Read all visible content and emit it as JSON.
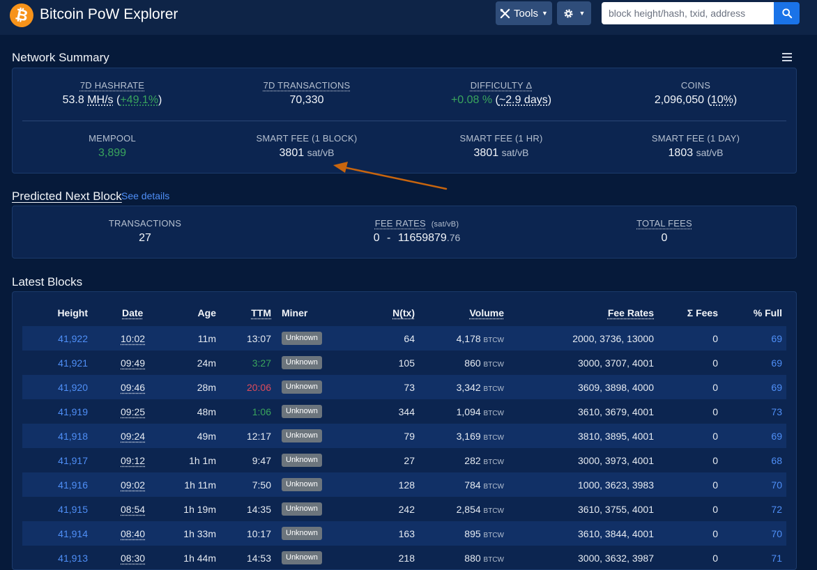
{
  "nav": {
    "brand": "Bitcoin PoW Explorer",
    "logo_symbol": "₿",
    "tools_label": "Tools",
    "search_placeholder": "block height/hash, txid, address"
  },
  "summary": {
    "title": "Network Summary",
    "hashrate_label": "7D HASHRATE",
    "hashrate_value": "53.8",
    "hashrate_unit": "MH/s",
    "hashrate_change": "+49.1%",
    "tx_label": "7D TRANSACTIONS",
    "tx_value": "70,330",
    "difficulty_label": "DIFFICULTY Δ",
    "difficulty_change": "+0.08 %",
    "difficulty_time": "~2.9 days",
    "coins_label": "COINS",
    "coins_value": "2,096,050",
    "coins_pct": "10%",
    "mempool_label": "MEMPOOL",
    "mempool_value": "3,899",
    "fee1_label": "SMART FEE (1 BLOCK)",
    "fee1_value": "3801",
    "fee2_label": "SMART FEE (1 HR)",
    "fee2_value": "3801",
    "fee3_label": "SMART FEE (1 DAY)",
    "fee3_value": "1803",
    "fee_unit": "sat/vB"
  },
  "predicted": {
    "title": "Predicted Next Block",
    "see_details": "See details",
    "tx_label": "TRANSACTIONS",
    "tx_value": "27",
    "feerates_label": "FEE RATES",
    "feerates_unit": "(sat/vB)",
    "feerates_min": "0",
    "feerates_sep": "-",
    "feerates_max_int": "11659879",
    "feerates_max_dec": ".76",
    "totalfees_label": "TOTAL FEES",
    "totalfees_value": "0"
  },
  "blocks": {
    "title": "Latest Blocks",
    "columns": [
      "Height",
      "Date",
      "Age",
      "TTM",
      "Miner",
      "N(tx)",
      "Volume",
      "Fee Rates",
      "Σ Fees",
      "% Full"
    ],
    "volume_unit": "BTCW",
    "rows": [
      {
        "height": "41,922",
        "date": "10:02",
        "age": "11m",
        "ttm": "13:07",
        "ttm_class": "",
        "miner": "Unknown",
        "ntx": "64",
        "volume": "4,178",
        "fees": "2000, 3736, 13000",
        "sum_fees": "0",
        "full": "69"
      },
      {
        "height": "41,921",
        "date": "09:49",
        "age": "24m",
        "ttm": "3:27",
        "ttm_class": "ttm-fast",
        "miner": "Unknown",
        "ntx": "105",
        "volume": "860",
        "fees": "3000, 3707, 4001",
        "sum_fees": "0",
        "full": "69"
      },
      {
        "height": "41,920",
        "date": "09:46",
        "age": "28m",
        "ttm": "20:06",
        "ttm_class": "ttm-slow",
        "miner": "Unknown",
        "ntx": "73",
        "volume": "3,342",
        "fees": "3609, 3898, 4000",
        "sum_fees": "0",
        "full": "69"
      },
      {
        "height": "41,919",
        "date": "09:25",
        "age": "48m",
        "ttm": "1:06",
        "ttm_class": "ttm-fast",
        "miner": "Unknown",
        "ntx": "344",
        "volume": "1,094",
        "fees": "3610, 3679, 4001",
        "sum_fees": "0",
        "full": "73"
      },
      {
        "height": "41,918",
        "date": "09:24",
        "age": "49m",
        "ttm": "12:17",
        "ttm_class": "",
        "miner": "Unknown",
        "ntx": "79",
        "volume": "3,169",
        "fees": "3810, 3895, 4001",
        "sum_fees": "0",
        "full": "69"
      },
      {
        "height": "41,917",
        "date": "09:12",
        "age": "1h 1m",
        "ttm": "9:47",
        "ttm_class": "",
        "miner": "Unknown",
        "ntx": "27",
        "volume": "282",
        "fees": "3000, 3973, 4001",
        "sum_fees": "0",
        "full": "68"
      },
      {
        "height": "41,916",
        "date": "09:02",
        "age": "1h 11m",
        "ttm": "7:50",
        "ttm_class": "",
        "miner": "Unknown",
        "ntx": "128",
        "volume": "784",
        "fees": "1000, 3623, 3983",
        "sum_fees": "0",
        "full": "70"
      },
      {
        "height": "41,915",
        "date": "08:54",
        "age": "1h 19m",
        "ttm": "14:35",
        "ttm_class": "",
        "miner": "Unknown",
        "ntx": "242",
        "volume": "2,854",
        "fees": "3610, 3755, 4001",
        "sum_fees": "0",
        "full": "72"
      },
      {
        "height": "41,914",
        "date": "08:40",
        "age": "1h 33m",
        "ttm": "10:17",
        "ttm_class": "",
        "miner": "Unknown",
        "ntx": "163",
        "volume": "895",
        "fees": "3610, 3844, 4001",
        "sum_fees": "0",
        "full": "70"
      },
      {
        "height": "41,913",
        "date": "08:30",
        "age": "1h 44m",
        "ttm": "14:53",
        "ttm_class": "",
        "miner": "Unknown",
        "ntx": "218",
        "volume": "880",
        "fees": "3000, 3632, 3987",
        "sum_fees": "0",
        "full": "71"
      }
    ]
  },
  "colors": {
    "background": "#061a3a",
    "panel": "#0c2550",
    "accent": "#4f8ff7",
    "positive": "#3aa55d",
    "negative": "#e04b5a",
    "annotation_arrow": "#c8650e"
  }
}
